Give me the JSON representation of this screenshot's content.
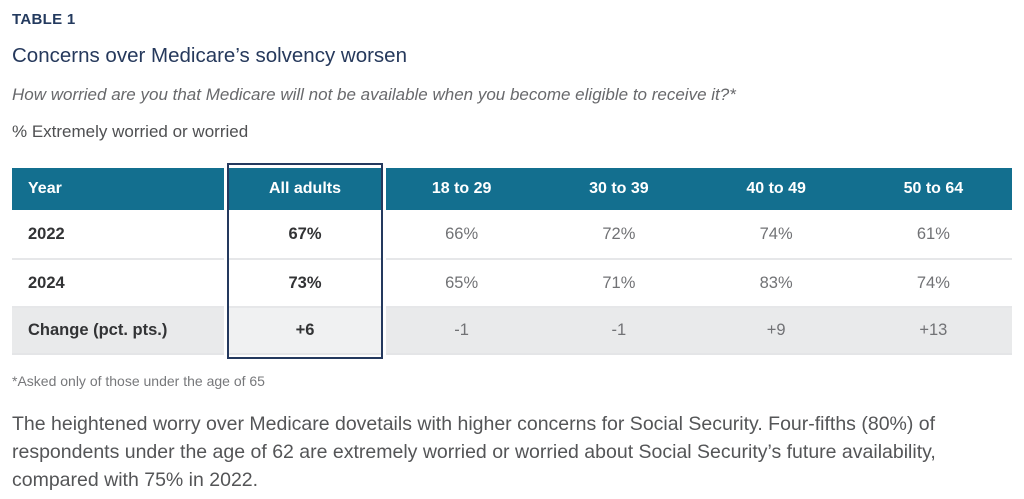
{
  "header": {
    "kicker": "TABLE 1",
    "title": "Concerns over Medicare’s solvency worsen",
    "question": "How worried are you that Medicare will not be available when you become eligible to receive it?*",
    "measure": "% Extremely worried or worried"
  },
  "chart_data": {
    "type": "table",
    "title": "Concerns over Medicare’s solvency worsen",
    "subtitle": "% Extremely worried or worried",
    "columns": [
      "Year",
      "All adults",
      "18 to 29",
      "30 to 39",
      "40 to 49",
      "50 to 64"
    ],
    "rows": [
      {
        "label": "2022",
        "values": [
          "67%",
          "66%",
          "72%",
          "74%",
          "61%"
        ]
      },
      {
        "label": "2024",
        "values": [
          "73%",
          "65%",
          "71%",
          "83%",
          "74%"
        ]
      },
      {
        "label": "Change (pct. pts.)",
        "values": [
          "+6",
          "-1",
          "-1",
          "+9",
          "+13"
        ]
      }
    ],
    "highlighted_column": "All adults"
  },
  "footnote": "*Asked only of those under the age of 65",
  "body_paragraph": "The heightened worry over Medicare dovetails with higher concerns for Social Security. Four-fifths (80%) of respondents under the age of 62 are extremely worried or worried about Social Security’s future availability, compared with 75% in 2022.",
  "colors": {
    "header_bg": "#136f8f",
    "accent_navy": "#24395e",
    "change_row_bg": "#e9eaeb",
    "title_navy": "#26395c"
  }
}
